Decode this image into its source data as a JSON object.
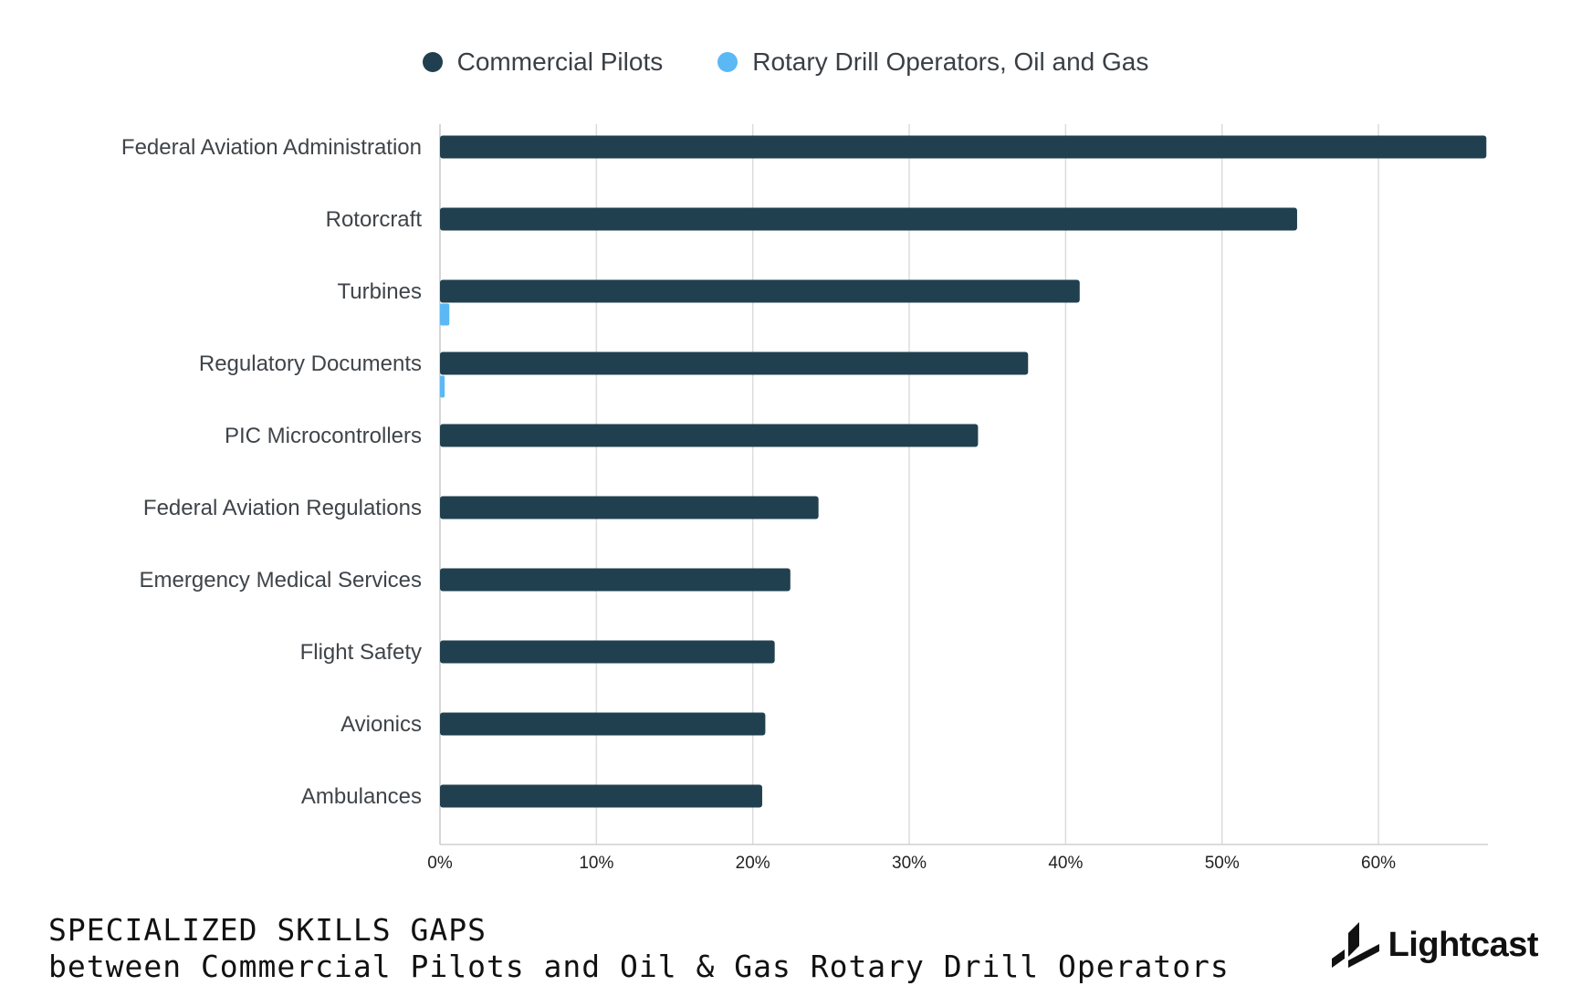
{
  "legend": [
    {
      "label": "Commercial Pilots",
      "color": "#21404f"
    },
    {
      "label": "Rotary Drill Operators, Oil and Gas",
      "color": "#5ab9f4"
    }
  ],
  "chart_data": {
    "type": "bar",
    "orientation": "horizontal",
    "categories": [
      "Federal Aviation Administration",
      "Rotorcraft",
      "Turbines",
      "Regulatory Documents",
      "PIC Microcontrollers",
      "Federal Aviation Regulations",
      "Emergency Medical Services",
      "Flight Safety",
      "Avionics",
      "Ambulances"
    ],
    "series": [
      {
        "name": "Commercial Pilots",
        "color": "#21404f",
        "values": [
          66.9,
          54.8,
          40.9,
          37.6,
          34.4,
          24.2,
          22.4,
          21.4,
          20.8,
          20.6
        ]
      },
      {
        "name": "Rotary Drill Operators, Oil and Gas",
        "color": "#5ab9f4",
        "values": [
          0,
          0,
          0.6,
          0.3,
          0,
          0,
          0,
          0,
          0,
          0
        ]
      }
    ],
    "x_ticks": [
      "0%",
      "10%",
      "20%",
      "30%",
      "40%",
      "50%",
      "60%"
    ],
    "xlim": [
      0,
      67
    ],
    "grid": true,
    "legend_position": "top"
  },
  "footer": {
    "title": "SPECIALIZED SKILLS GAPS",
    "subtitle": "between Commercial Pilots and Oil & Gas Rotary Drill Operators"
  },
  "brand": {
    "name": "Lightcast"
  }
}
